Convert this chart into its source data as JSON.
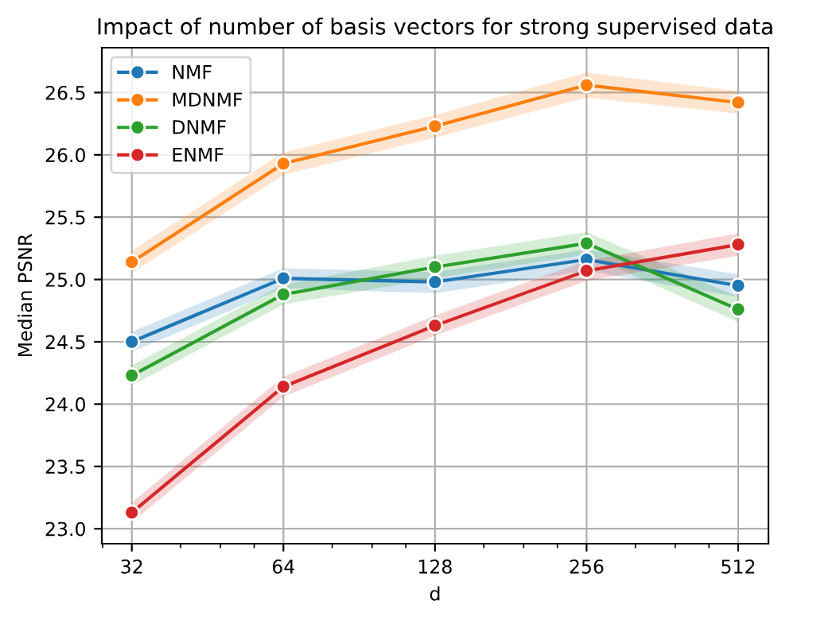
{
  "chart_data": {
    "type": "line",
    "title": "Impact of number of basis vectors for strong supervised data",
    "xlabel": "d",
    "ylabel": "Median PSNR",
    "x": [
      32,
      64,
      128,
      256,
      512
    ],
    "series": [
      {
        "name": "NMF",
        "color": "#1f77b4",
        "values": [
          24.5,
          25.01,
          24.98,
          25.16,
          24.95
        ],
        "lower": [
          24.42,
          24.93,
          24.89,
          25.07,
          24.86
        ],
        "upper": [
          24.58,
          25.09,
          25.06,
          25.24,
          25.04
        ]
      },
      {
        "name": "MDNMF",
        "color": "#ff7f0e",
        "values": [
          25.14,
          25.93,
          26.23,
          26.56,
          26.42
        ],
        "lower": [
          25.05,
          25.84,
          26.14,
          26.46,
          26.33
        ],
        "upper": [
          25.23,
          26.02,
          26.32,
          26.66,
          26.51
        ]
      },
      {
        "name": "DNMF",
        "color": "#2ca02c",
        "values": [
          24.23,
          24.88,
          25.1,
          25.29,
          24.76
        ],
        "lower": [
          24.15,
          24.8,
          25.01,
          25.2,
          24.66
        ],
        "upper": [
          24.31,
          24.96,
          25.19,
          25.38,
          24.86
        ]
      },
      {
        "name": "ENMF",
        "color": "#d62728",
        "values": [
          23.13,
          24.14,
          24.63,
          25.07,
          25.28
        ],
        "lower": [
          23.05,
          24.06,
          24.55,
          24.99,
          25.19
        ],
        "upper": [
          23.21,
          24.22,
          24.71,
          25.15,
          25.37
        ]
      }
    ],
    "log": "x",
    "xlim": [
      27.9,
      588
    ],
    "xticks": [
      32,
      64,
      128,
      256,
      512
    ],
    "ylim": [
      22.88,
      26.86
    ],
    "yticks": [
      {
        "value": 23,
        "label": "23.0"
      },
      23.5,
      {
        "value": 24,
        "label": "24.0"
      },
      24.5,
      {
        "value": 25,
        "label": "25.0"
      },
      25.5,
      {
        "value": 26,
        "label": "26.0"
      },
      26.5
    ],
    "grid": true,
    "legend": "top left",
    "marker": "circle",
    "line_style": "solid"
  }
}
